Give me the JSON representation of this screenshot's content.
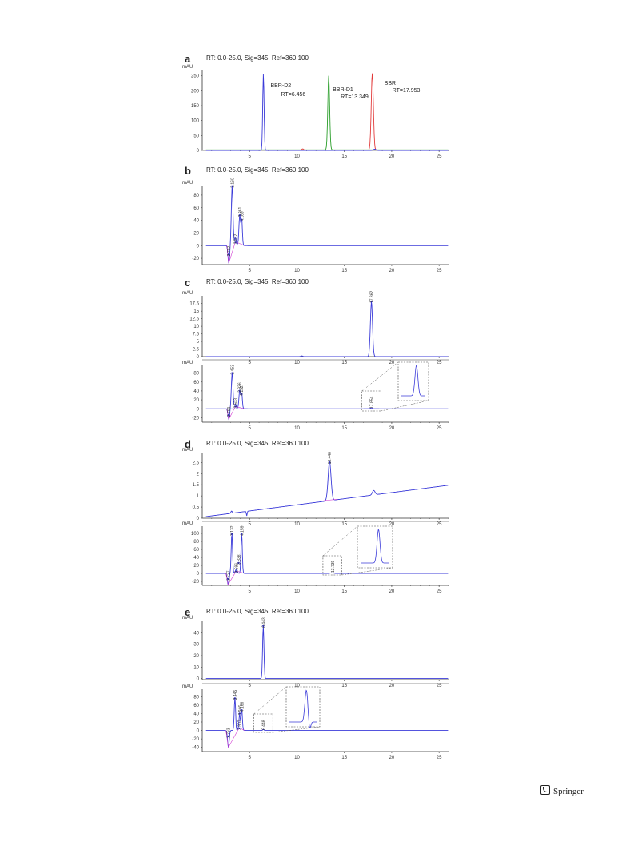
{
  "colors": {
    "blue": "#3b3bd9",
    "green": "#2a9e2a",
    "red": "#e23b3b",
    "magenta": "#d23bd2",
    "axis": "#333333"
  },
  "x_ticks": [
    "5",
    "10",
    "15",
    "20",
    "25"
  ],
  "panels": [
    {
      "letter": "a",
      "signal": "RT: 0.0-25.0, Sig=345, Ref=360,100",
      "subplots": [
        {
          "unit": "mAU",
          "y_ticks": [
            "250",
            "200",
            "150",
            "100",
            "50",
            "0"
          ],
          "series": [
            {
              "color": "blue",
              "peaks": [
                {
                  "rt": 6.456,
                  "height": 258
                }
              ]
            },
            {
              "color": "green",
              "peaks": [
                {
                  "rt": 13.349,
                  "height": 250
                }
              ]
            },
            {
              "color": "red",
              "peaks": [
                {
                  "rt": 17.953,
                  "height": 260
                }
              ]
            }
          ],
          "annotations": [
            {
              "name": "BBR-D2",
              "rt": "RT=6.456"
            },
            {
              "name": "BBR-D1",
              "rt": "RT=13.349"
            },
            {
              "name": "BBR",
              "rt": "RT=17.953"
            }
          ],
          "peak_labels": []
        }
      ]
    },
    {
      "letter": "b",
      "signal": "RT: 0.0-25.0, Sig=345, Ref=360,100",
      "subplots": [
        {
          "unit": "mAU",
          "y_ticks": [
            "80",
            "60",
            "40",
            "20",
            "0",
            "-20"
          ],
          "peak_labels": [
            "2.792",
            "3.160",
            "3.512",
            "3.961",
            "4.169"
          ]
        }
      ]
    },
    {
      "letter": "c",
      "signal": "RT: 0.0-25.0, Sig=345, Ref=360,100",
      "subplots": [
        {
          "unit": "mAU",
          "y_ticks": [
            "17.5",
            "15",
            "12.5",
            "10",
            "7.5",
            "5",
            "2.5",
            "0"
          ],
          "peak_labels": [
            "17.862"
          ]
        },
        {
          "unit": "mAU",
          "y_ticks": [
            "80",
            "60",
            "40",
            "20",
            "0",
            "-20"
          ],
          "peak_labels": [
            "2.791",
            "3.453",
            "3.503",
            "3.936",
            "4.152"
          ],
          "inset_label": "17.854"
        }
      ]
    },
    {
      "letter": "d",
      "signal": "RT: 0.0-25.0, Sig=345, Ref=360,100",
      "subplots": [
        {
          "unit": "mAU",
          "y_ticks": [
            "2.5",
            "2",
            "1.5",
            "1",
            "0.5",
            "0"
          ],
          "peak_labels": [
            "13.440"
          ]
        },
        {
          "unit": "mAU",
          "y_ticks": [
            "100",
            "80",
            "60",
            "40",
            "20",
            "0",
            "-20"
          ],
          "peak_labels": [
            "2.727",
            "3.132",
            "3.596",
            "3.838",
            "4.159"
          ],
          "inset_label": "13.739"
        }
      ]
    },
    {
      "letter": "e",
      "signal": "RT: 0.0-25.0, Sig=345, Ref=360,100",
      "subplots": [
        {
          "unit": "mAU",
          "y_ticks": [
            "40",
            "30",
            "20",
            "10",
            "0"
          ],
          "peak_labels": [
            "6.443"
          ]
        },
        {
          "unit": "mAU",
          "y_ticks": [
            "80",
            "60",
            "40",
            "20",
            "0",
            "-20",
            "-40"
          ],
          "peak_labels": [
            "2.763",
            "3.445",
            "3.907",
            "3.946",
            "4.166"
          ],
          "inset_label": "6.448"
        }
      ]
    }
  ],
  "publisher": "Springer"
}
